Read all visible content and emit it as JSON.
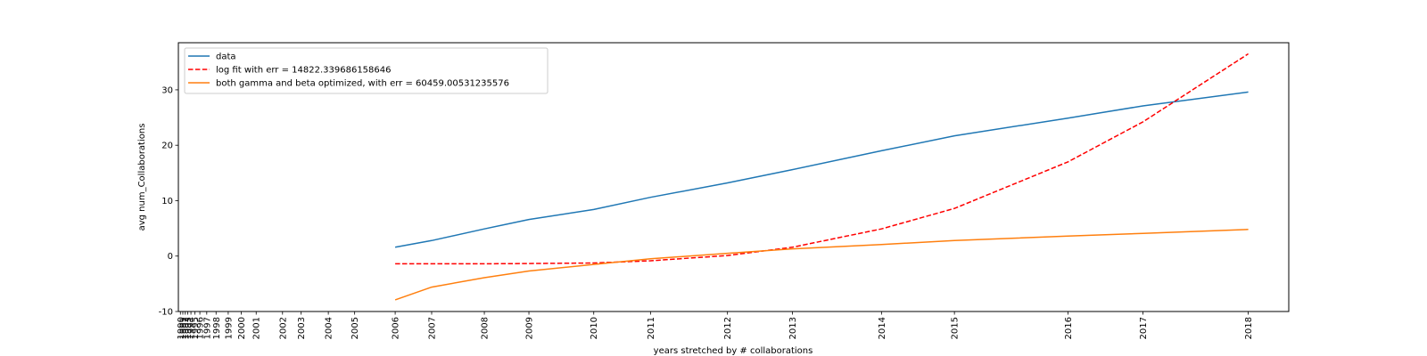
{
  "chart_data": {
    "type": "line",
    "title": "",
    "xlabel": "years stretched by # collaborations",
    "ylabel": "avg num_Collaborations",
    "ylim": [
      -10,
      38.5
    ],
    "yticks": [
      -10,
      0,
      10,
      20,
      30
    ],
    "x_ticks": [
      {
        "label": "1990",
        "pos": 0.0
      },
      {
        "label": "1991",
        "pos": 0.06
      },
      {
        "label": "1992",
        "pos": 0.12
      },
      {
        "label": "1993",
        "pos": 0.18
      },
      {
        "label": "1994",
        "pos": 0.26
      },
      {
        "label": "1995",
        "pos": 0.36
      },
      {
        "label": "1996",
        "pos": 0.48
      },
      {
        "label": "1997",
        "pos": 0.65
      },
      {
        "label": "1998",
        "pos": 0.88
      },
      {
        "label": "1999",
        "pos": 1.18
      },
      {
        "label": "2000",
        "pos": 1.5
      },
      {
        "label": "2001",
        "pos": 1.87
      },
      {
        "label": "2002",
        "pos": 2.52
      },
      {
        "label": "2003",
        "pos": 2.98
      },
      {
        "label": "2004",
        "pos": 3.65
      },
      {
        "label": "2005",
        "pos": 4.3
      },
      {
        "label": "2006",
        "pos": 5.3
      },
      {
        "label": "2007",
        "pos": 6.2
      },
      {
        "label": "2008",
        "pos": 7.5
      },
      {
        "label": "2009",
        "pos": 8.6
      },
      {
        "label": "2010",
        "pos": 10.2
      },
      {
        "label": "2011",
        "pos": 11.6
      },
      {
        "label": "2012",
        "pos": 13.5
      },
      {
        "label": "2013",
        "pos": 15.1
      },
      {
        "label": "2014",
        "pos": 17.3
      },
      {
        "label": "2015",
        "pos": 19.1
      },
      {
        "label": "2016",
        "pos": 21.9
      },
      {
        "label": "2017",
        "pos": 23.75
      },
      {
        "label": "2018",
        "pos": 26.35
      }
    ],
    "xlim": [
      -0.05,
      27.35
    ],
    "x": [
      5.3,
      6.2,
      7.5,
      8.6,
      10.2,
      11.6,
      13.5,
      15.1,
      17.3,
      19.1,
      21.9,
      23.75,
      26.35
    ],
    "series": [
      {
        "name": "data",
        "color": "#1f77b4",
        "style": "solid",
        "values": [
          1.6,
          2.8,
          4.9,
          6.6,
          8.4,
          10.6,
          13.2,
          15.6,
          19.0,
          21.7,
          24.9,
          27.1,
          29.6
        ]
      },
      {
        "name": "log fit with err = 14822.339686158646",
        "color": "#ff0000",
        "style": "dashed",
        "values": [
          -1.4,
          -1.4,
          -1.4,
          -1.35,
          -1.25,
          -0.85,
          0.1,
          1.6,
          4.9,
          8.6,
          17.0,
          24.2,
          36.5
        ]
      },
      {
        "name": "both gamma and beta optimized, with err = 60459.00531235576",
        "color": "#ff7f0e",
        "style": "solid",
        "values": [
          -7.9,
          -5.6,
          -3.9,
          -2.7,
          -1.5,
          -0.5,
          0.5,
          1.3,
          2.1,
          2.8,
          3.6,
          4.1,
          4.8
        ]
      }
    ],
    "legend_position": "top-left",
    "grid": false
  }
}
